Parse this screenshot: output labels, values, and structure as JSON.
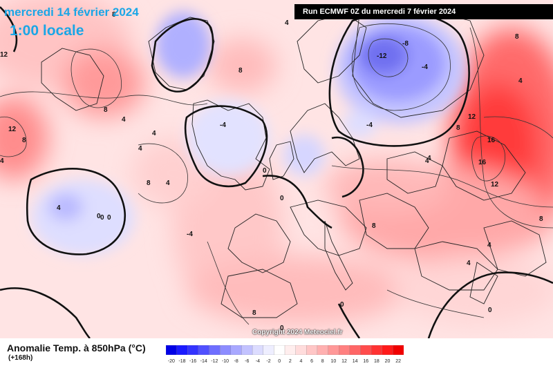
{
  "header": {
    "date_title": "mercredi 14 février 2024",
    "time_title": "1:00 locale",
    "run_info": "Run ECMWF 0Z du mercredi 7 février 2024"
  },
  "footer": {
    "field_name": "Anomalie Temp. à 850hPa (°C)",
    "lead_time": "(+168h)",
    "copyright": "Copyright 2024 Meteociel.fr"
  },
  "scale": {
    "colors": [
      "#0000e6",
      "#1a1aff",
      "#3333ff",
      "#5050ff",
      "#6e6eff",
      "#8c8cff",
      "#a8a8ff",
      "#c2c2ff",
      "#dcdcff",
      "#eeeeff",
      "#ffffff",
      "#ffeeee",
      "#ffdcdc",
      "#ffc6c6",
      "#ffb0b0",
      "#ff9898",
      "#ff8080",
      "#ff6666",
      "#ff4c4c",
      "#ff3232",
      "#ff1a1a",
      "#f00000"
    ],
    "ticks": [
      "-20",
      "-18",
      "-16",
      "-14",
      "-12",
      "-10",
      "-8",
      "-6",
      "-4",
      "-2",
      "0",
      "2",
      "4",
      "6",
      "8",
      "10",
      "12",
      "14",
      "16",
      "18",
      "20",
      "22"
    ]
  },
  "map": {
    "contour_labels": [
      "12",
      "8",
      "4",
      "8",
      "4",
      "12",
      "8",
      "4",
      "0",
      "4",
      "0",
      "0",
      "-4",
      "0",
      "-4",
      "8",
      "12",
      "16",
      "16",
      "12",
      "4",
      "8",
      "4",
      "8",
      "8",
      "8",
      "0",
      "-4",
      "4",
      "-8",
      "-12",
      "-4",
      "8",
      "4",
      "0",
      "4",
      "4",
      "8",
      "4",
      "0",
      "0",
      "4"
    ]
  }
}
